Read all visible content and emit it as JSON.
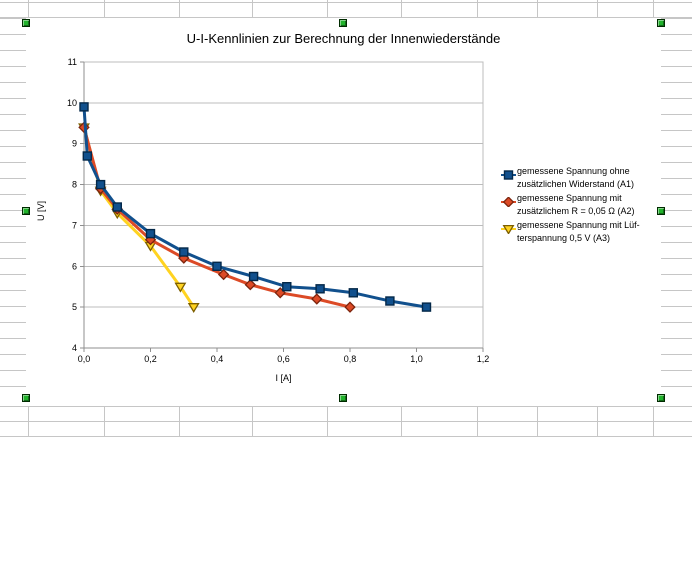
{
  "app": {
    "context": "spreadsheet-with-selected-chart-object",
    "selection_handle_color": "#21b32b",
    "sheet_grid_color": "#c6c6c6"
  },
  "chart_data": {
    "type": "line",
    "title": "U-I-Kennlinien zur Berechnung der Innenwiederstände",
    "xlabel": "I [A]",
    "ylabel": "U [V]",
    "xlim": [
      0,
      1.2
    ],
    "ylim": [
      4,
      11
    ],
    "x_ticks": [
      {
        "value": 0.0,
        "label": "0,0"
      },
      {
        "value": 0.2,
        "label": "0,2"
      },
      {
        "value": 0.4,
        "label": "0,4"
      },
      {
        "value": 0.6,
        "label": "0,6"
      },
      {
        "value": 0.8,
        "label": "0,8"
      },
      {
        "value": 1.0,
        "label": "1,0"
      },
      {
        "value": 1.2,
        "label": "1,2"
      }
    ],
    "y_ticks": [
      {
        "value": 4,
        "label": "4"
      },
      {
        "value": 5,
        "label": "5"
      },
      {
        "value": 6,
        "label": "6"
      },
      {
        "value": 7,
        "label": "7"
      },
      {
        "value": 8,
        "label": "8"
      },
      {
        "value": 9,
        "label": "9"
      },
      {
        "value": 10,
        "label": "10"
      },
      {
        "value": 11,
        "label": "11"
      }
    ],
    "grid": "horizontal-major",
    "legend_position": "right",
    "colors": {
      "grid": "#bcbcbc",
      "plot_border": "#bcbcbc",
      "axis": "#8f8f8f",
      "text": "#000000"
    },
    "series": [
      {
        "name": "gemessene Spannung ohne zusätzlichen Widerstand (A1)",
        "label_lines": [
          "gemessene Spannung ohne",
          "zusätzlichen Widerstand (A1)"
        ],
        "marker": "square",
        "color": "#11508d",
        "marker_border": "#042849",
        "points": [
          [
            0.0,
            9.9
          ],
          [
            0.01,
            8.7
          ],
          [
            0.05,
            8.0
          ],
          [
            0.1,
            7.45
          ],
          [
            0.2,
            6.8
          ],
          [
            0.3,
            6.35
          ],
          [
            0.4,
            6.0
          ],
          [
            0.51,
            5.75
          ],
          [
            0.61,
            5.5
          ],
          [
            0.71,
            5.45
          ],
          [
            0.81,
            5.35
          ],
          [
            0.92,
            5.15
          ],
          [
            1.03,
            5.0
          ]
        ]
      },
      {
        "name": "gemessene Spannung mit zusätzlichem R = 0,05 Ω (A2)",
        "label_lines": [
          "gemessene Spannung mit",
          "zusätzlichem R = 0,05 Ω (A2)"
        ],
        "marker": "diamond",
        "color": "#dc4a26",
        "marker_border": "#7b240d",
        "points": [
          [
            0.0,
            9.4
          ],
          [
            0.05,
            7.9
          ],
          [
            0.1,
            7.4
          ],
          [
            0.2,
            6.65
          ],
          [
            0.3,
            6.2
          ],
          [
            0.42,
            5.8
          ],
          [
            0.5,
            5.55
          ],
          [
            0.59,
            5.35
          ],
          [
            0.7,
            5.2
          ],
          [
            0.8,
            5.0
          ]
        ]
      },
      {
        "name": "gemessene Spannung mit Lüfterspannung 0,5 V (A3)",
        "label_lines": [
          "gemessene Spannung mit Lüf-",
          "terspannung 0,5 V (A3)"
        ],
        "marker": "triangle-down",
        "color": "#ffd320",
        "marker_border": "#7d5f00",
        "points": [
          [
            0.0,
            9.4
          ],
          [
            0.05,
            7.85
          ],
          [
            0.1,
            7.3
          ],
          [
            0.2,
            6.5
          ],
          [
            0.29,
            5.5
          ],
          [
            0.33,
            5.0
          ]
        ]
      }
    ]
  }
}
